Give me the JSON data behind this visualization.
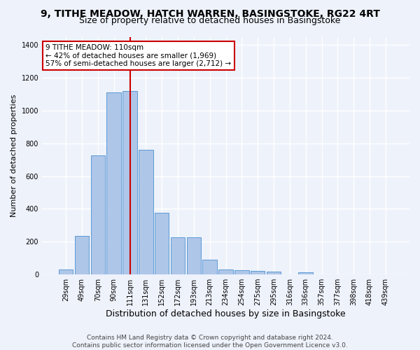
{
  "title_line1": "9, TITHE MEADOW, HATCH WARREN, BASINGSTOKE, RG22 4RT",
  "title_line2": "Size of property relative to detached houses in Basingstoke",
  "xlabel": "Distribution of detached houses by size in Basingstoke",
  "ylabel": "Number of detached properties",
  "categories": [
    "29sqm",
    "49sqm",
    "70sqm",
    "90sqm",
    "111sqm",
    "131sqm",
    "152sqm",
    "172sqm",
    "193sqm",
    "213sqm",
    "234sqm",
    "254sqm",
    "275sqm",
    "295sqm",
    "316sqm",
    "336sqm",
    "357sqm",
    "377sqm",
    "398sqm",
    "418sqm",
    "439sqm"
  ],
  "values": [
    30,
    235,
    725,
    1110,
    1120,
    760,
    375,
    225,
    225,
    90,
    30,
    25,
    22,
    18,
    0,
    12,
    0,
    0,
    0,
    0,
    0
  ],
  "bar_color": "#aec6e8",
  "bar_edge_color": "#5b9bd5",
  "vline_index": 4,
  "vline_color": "#cc0000",
  "annotation_text": "9 TITHE MEADOW: 110sqm\n← 42% of detached houses are smaller (1,969)\n57% of semi-detached houses are larger (2,712) →",
  "annotation_box_color": "#ffffff",
  "annotation_box_edge_color": "#cc0000",
  "ylim": [
    0,
    1450
  ],
  "yticks": [
    0,
    200,
    400,
    600,
    800,
    1000,
    1200,
    1400
  ],
  "footer_line1": "Contains HM Land Registry data © Crown copyright and database right 2024.",
  "footer_line2": "Contains public sector information licensed under the Open Government Licence v3.0.",
  "bg_color": "#eef2fb",
  "grid_color": "#ffffff",
  "title_fontsize": 10,
  "subtitle_fontsize": 9,
  "ylabel_fontsize": 8,
  "xlabel_fontsize": 9,
  "tick_fontsize": 7,
  "annotation_fontsize": 7.5,
  "footer_fontsize": 6.5
}
